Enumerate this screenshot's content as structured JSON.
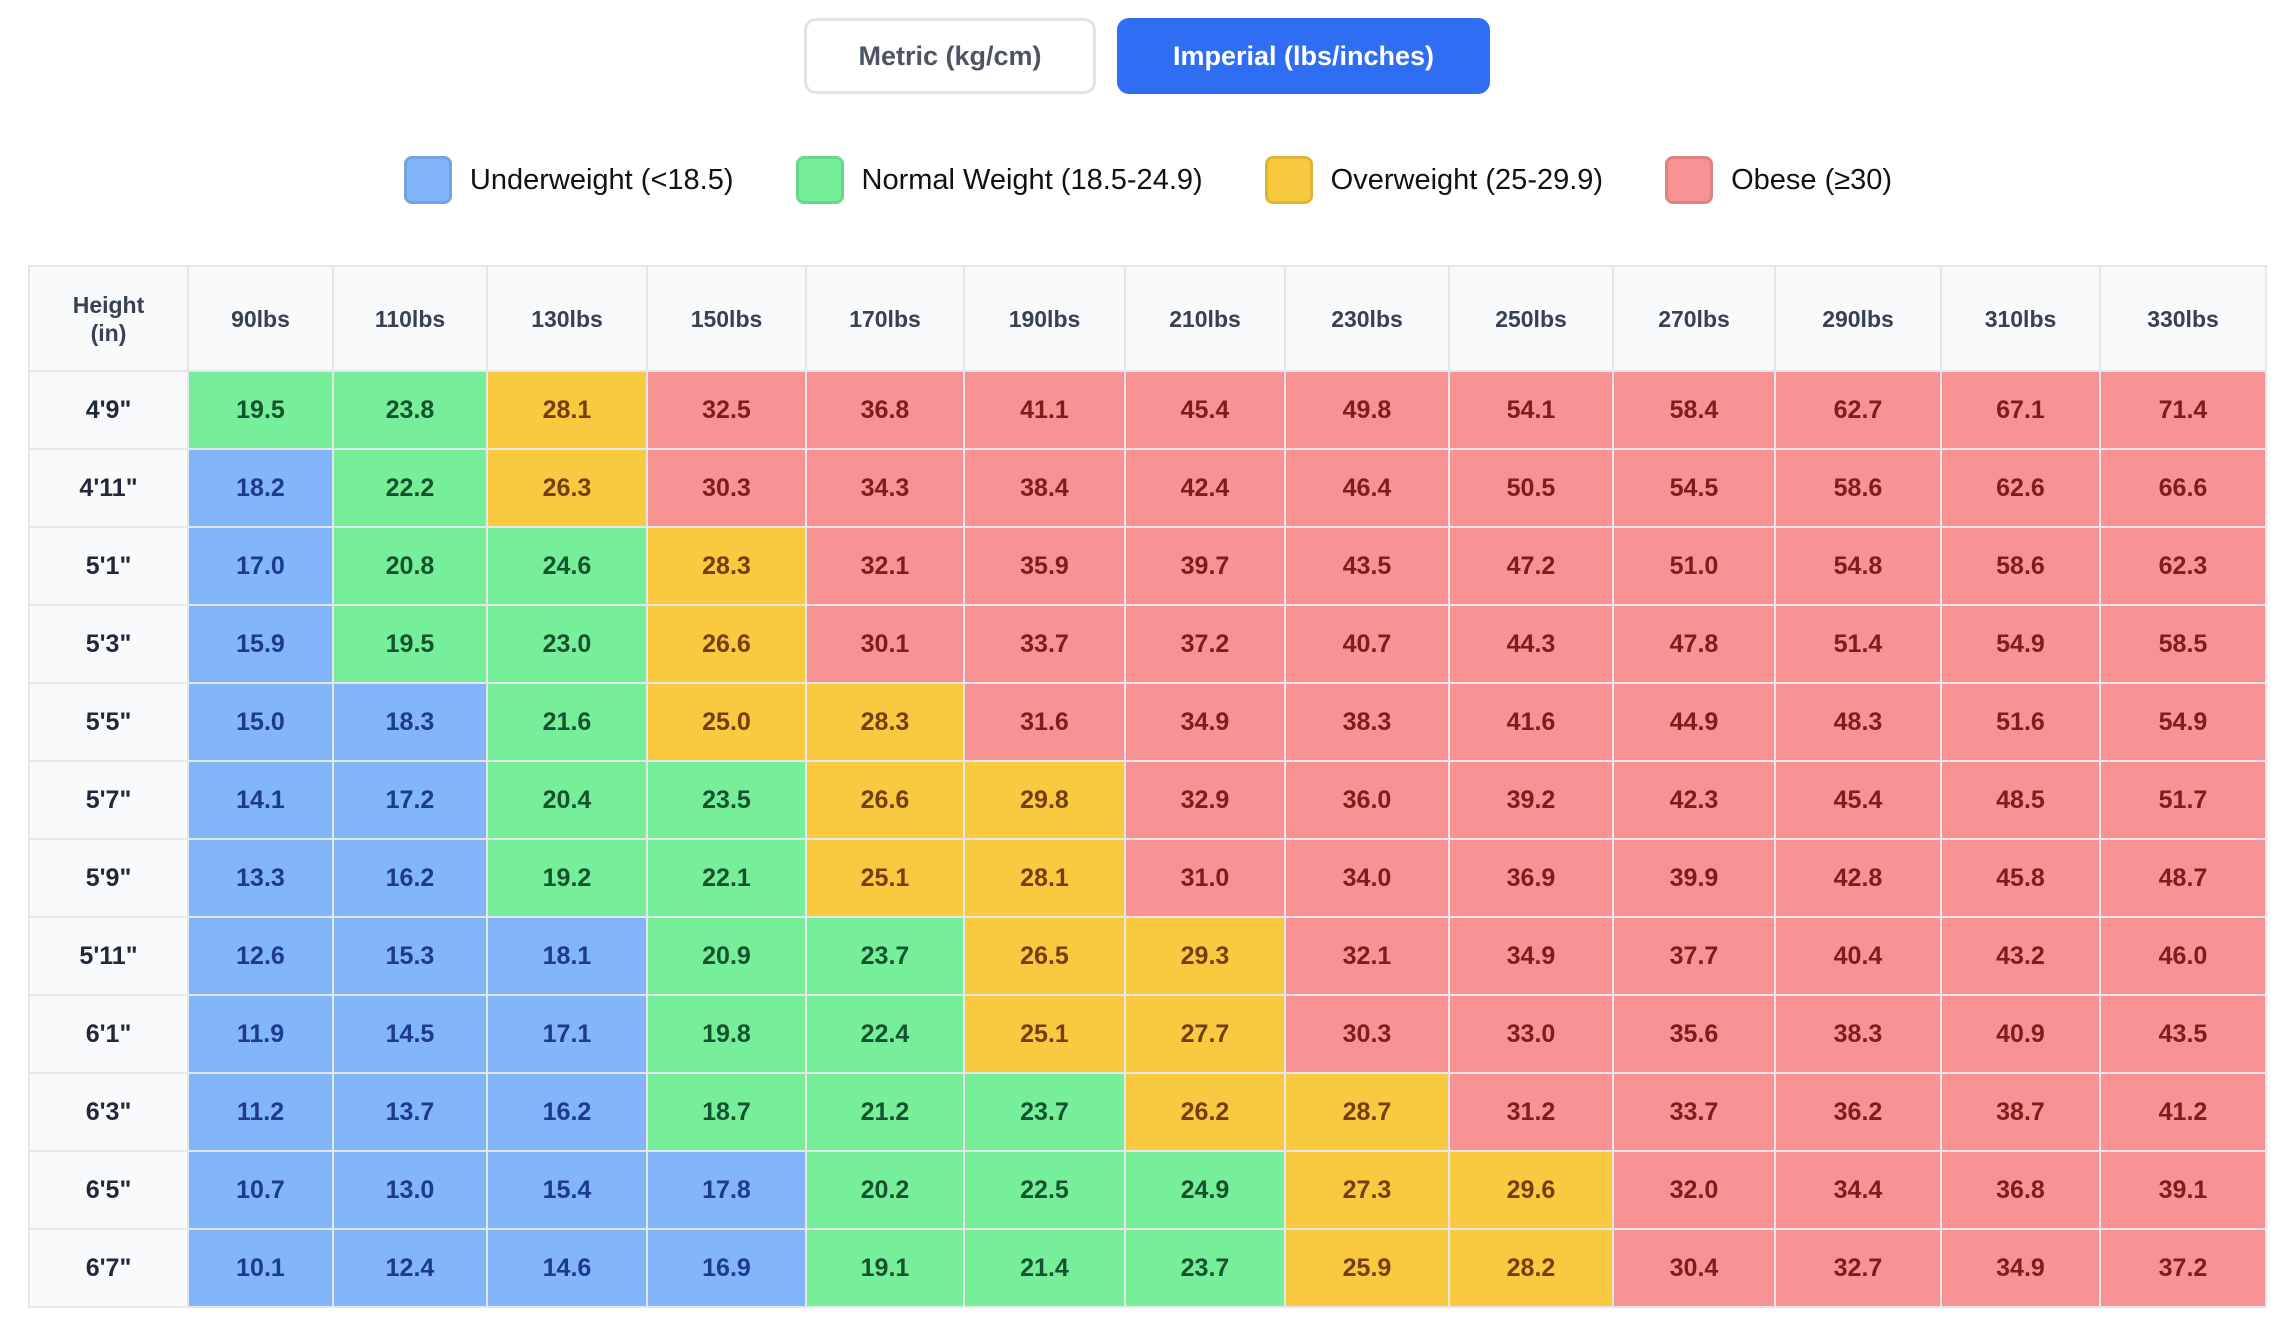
{
  "units_toggle": {
    "metric_label": "Metric (kg/cm)",
    "imperial_label": "Imperial (lbs/inches)",
    "selected": "imperial"
  },
  "legend": [
    {
      "label": "Underweight (<18.5)",
      "color": "#83b5fb",
      "text_color": "#1e3a8a"
    },
    {
      "label": "Normal Weight (18.5-24.9)",
      "color": "#77ef9a",
      "text_color": "#14532d"
    },
    {
      "label": "Overweight (25-29.9)",
      "color": "#f9ca3f",
      "text_color": "#713f12"
    },
    {
      "label": "Obese (≥30)",
      "color": "#f89294",
      "text_color": "#7f1d1d"
    }
  ],
  "table": {
    "corner_header": "Height (in)",
    "weights": [
      "90lbs",
      "110lbs",
      "130lbs",
      "150lbs",
      "170lbs",
      "190lbs",
      "210lbs",
      "230lbs",
      "250lbs",
      "270lbs",
      "290lbs",
      "310lbs",
      "330lbs"
    ],
    "rows": [
      {
        "height": "4'9\"",
        "bmi": [
          "19.5",
          "23.8",
          "28.1",
          "32.5",
          "36.8",
          "41.1",
          "45.4",
          "49.8",
          "54.1",
          "58.4",
          "62.7",
          "67.1",
          "71.4"
        ]
      },
      {
        "height": "4'11\"",
        "bmi": [
          "18.2",
          "22.2",
          "26.3",
          "30.3",
          "34.3",
          "38.4",
          "42.4",
          "46.4",
          "50.5",
          "54.5",
          "58.6",
          "62.6",
          "66.6"
        ]
      },
      {
        "height": "5'1\"",
        "bmi": [
          "17.0",
          "20.8",
          "24.6",
          "28.3",
          "32.1",
          "35.9",
          "39.7",
          "43.5",
          "47.2",
          "51.0",
          "54.8",
          "58.6",
          "62.3"
        ]
      },
      {
        "height": "5'3\"",
        "bmi": [
          "15.9",
          "19.5",
          "23.0",
          "26.6",
          "30.1",
          "33.7",
          "37.2",
          "40.7",
          "44.3",
          "47.8",
          "51.4",
          "54.9",
          "58.5"
        ]
      },
      {
        "height": "5'5\"",
        "bmi": [
          "15.0",
          "18.3",
          "21.6",
          "25.0",
          "28.3",
          "31.6",
          "34.9",
          "38.3",
          "41.6",
          "44.9",
          "48.3",
          "51.6",
          "54.9"
        ]
      },
      {
        "height": "5'7\"",
        "bmi": [
          "14.1",
          "17.2",
          "20.4",
          "23.5",
          "26.6",
          "29.8",
          "32.9",
          "36.0",
          "39.2",
          "42.3",
          "45.4",
          "48.5",
          "51.7"
        ]
      },
      {
        "height": "5'9\"",
        "bmi": [
          "13.3",
          "16.2",
          "19.2",
          "22.1",
          "25.1",
          "28.1",
          "31.0",
          "34.0",
          "36.9",
          "39.9",
          "42.8",
          "45.8",
          "48.7"
        ]
      },
      {
        "height": "5'11\"",
        "bmi": [
          "12.6",
          "15.3",
          "18.1",
          "20.9",
          "23.7",
          "26.5",
          "29.3",
          "32.1",
          "34.9",
          "37.7",
          "40.4",
          "43.2",
          "46.0"
        ]
      },
      {
        "height": "6'1\"",
        "bmi": [
          "11.9",
          "14.5",
          "17.1",
          "19.8",
          "22.4",
          "25.1",
          "27.7",
          "30.3",
          "33.0",
          "35.6",
          "38.3",
          "40.9",
          "43.5"
        ]
      },
      {
        "height": "6'3\"",
        "bmi": [
          "11.2",
          "13.7",
          "16.2",
          "18.7",
          "21.2",
          "23.7",
          "26.2",
          "28.7",
          "31.2",
          "33.7",
          "36.2",
          "38.7",
          "41.2"
        ]
      },
      {
        "height": "6'5\"",
        "bmi": [
          "10.7",
          "13.0",
          "15.4",
          "17.8",
          "20.2",
          "22.5",
          "24.9",
          "27.3",
          "29.6",
          "32.0",
          "34.4",
          "36.8",
          "39.1"
        ]
      },
      {
        "height": "6'7\"",
        "bmi": [
          "10.1",
          "12.4",
          "14.6",
          "16.9",
          "19.1",
          "21.4",
          "23.7",
          "25.9",
          "28.2",
          "30.4",
          "32.7",
          "34.9",
          "37.2"
        ]
      }
    ]
  }
}
